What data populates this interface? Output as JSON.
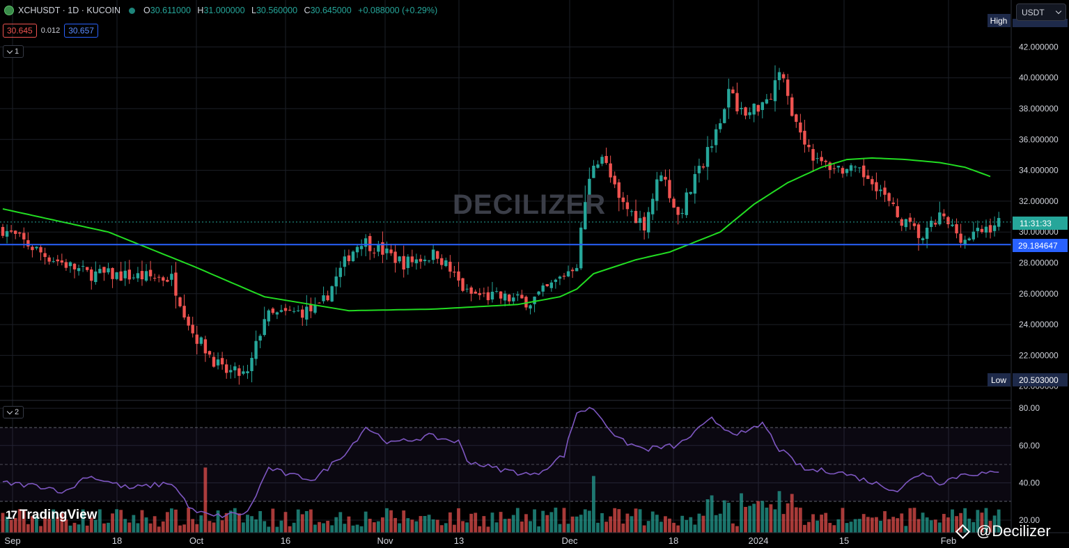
{
  "header": {
    "symbol": "XCHUSDT · 1D · KUCOIN",
    "open_label": "O",
    "open": "30.611000",
    "high_label": "H",
    "high": "31.000000",
    "low_label": "L",
    "low": "30.560000",
    "close_label": "C",
    "close": "30.645000",
    "change": "+0.088000 (+0.29%)",
    "sell_price": "30.645",
    "spread": "0.012",
    "buy_price": "30.657",
    "pane1_label": "1",
    "pane2_label": "2",
    "currency": "USDT"
  },
  "price_axis": {
    "ticks": [
      "42.000000",
      "40.000000",
      "38.000000",
      "36.000000",
      "34.000000",
      "32.000000",
      "30.000000",
      "28.000000",
      "26.000000",
      "24.000000",
      "22.000000",
      "20.000000"
    ],
    "high_tag": "High",
    "low_tag": "Low",
    "low_value": "20.503000",
    "countdown": "11:31:33",
    "line_value": "29.184647"
  },
  "rsi_axis": {
    "ticks": [
      "80.00",
      "60.00",
      "40.00",
      "20.00"
    ]
  },
  "time_axis": {
    "labels": [
      "Sep",
      "18",
      "Oct",
      "16",
      "Nov",
      "13",
      "Dec",
      "18",
      "2024",
      "15",
      "Feb"
    ]
  },
  "watermark": "DECILIZER",
  "branding": {
    "logo": "TradingView",
    "handle": "@Decilizer"
  },
  "colors": {
    "up": "#26a69a",
    "down": "#ef5350",
    "ma": "#22dd22",
    "rsi": "#7e57c2",
    "hline": "#2962ff"
  },
  "chart_data": [
    {
      "type": "candlestick",
      "symbol": "XCHUSDT",
      "interval": "1D",
      "ylim": [
        20,
        43
      ],
      "current_price": 30.645,
      "horizontal_line": 29.184647,
      "period_low": 20.503,
      "x_range": [
        "Sep 2023",
        "Feb 2024"
      ],
      "series": [
        {
          "name": "price",
          "key_points": [
            [
              0,
              30.2
            ],
            [
              10,
              28.5
            ],
            [
              20,
              27.3
            ],
            [
              40,
              27.0
            ],
            [
              45,
              23.5
            ],
            [
              52,
              21.0
            ],
            [
              58,
              20.7
            ],
            [
              62,
              24.5
            ],
            [
              75,
              25.0
            ],
            [
              82,
              28.5
            ],
            [
              85,
              29.5
            ],
            [
              95,
              28.0
            ],
            [
              103,
              28.6
            ],
            [
              110,
              26.0
            ],
            [
              125,
              25.5
            ],
            [
              130,
              26.5
            ],
            [
              136,
              28.0
            ],
            [
              138,
              32.0
            ],
            [
              140,
              34.5
            ],
            [
              142,
              35.0
            ],
            [
              146,
              32.0
            ],
            [
              152,
              30.5
            ],
            [
              156,
              34.0
            ],
            [
              160,
              31.0
            ],
            [
              166,
              34.5
            ],
            [
              170,
              37.5
            ],
            [
              172,
              39.0
            ],
            [
              176,
              37.5
            ],
            [
              182,
              39.0
            ],
            [
              184,
              40.5
            ],
            [
              188,
              37.0
            ],
            [
              193,
              34.5
            ],
            [
              200,
              34.0
            ],
            [
              206,
              33.5
            ],
            [
              212,
              31.0
            ],
            [
              218,
              29.6
            ],
            [
              222,
              31.0
            ],
            [
              228,
              29.5
            ],
            [
              236,
              30.645
            ]
          ]
        },
        {
          "name": "moving-average",
          "key_points": [
            [
              0,
              31.5
            ],
            [
              25,
              30.0
            ],
            [
              45,
              27.8
            ],
            [
              62,
              25.8
            ],
            [
              82,
              24.9
            ],
            [
              102,
              25.0
            ],
            [
              122,
              25.3
            ],
            [
              132,
              25.8
            ],
            [
              136,
              26.3
            ],
            [
              140,
              27.3
            ],
            [
              150,
              28.2
            ],
            [
              158,
              28.7
            ],
            [
              170,
              30.0
            ],
            [
              178,
              31.8
            ],
            [
              186,
              33.2
            ],
            [
              194,
              34.2
            ],
            [
              200,
              34.7
            ],
            [
              206,
              34.8
            ],
            [
              214,
              34.7
            ],
            [
              222,
              34.5
            ],
            [
              228,
              34.2
            ],
            [
              234,
              33.6
            ]
          ]
        },
        {
          "name": "rsi",
          "key_points": [
            [
              0,
              40
            ],
            [
              10,
              38
            ],
            [
              15,
              35
            ],
            [
              20,
              44
            ],
            [
              30,
              37
            ],
            [
              40,
              40
            ],
            [
              45,
              25
            ],
            [
              50,
              22
            ],
            [
              58,
              24
            ],
            [
              63,
              48
            ],
            [
              68,
              44
            ],
            [
              74,
              42
            ],
            [
              82,
              58
            ],
            [
              86,
              70
            ],
            [
              92,
              61
            ],
            [
              101,
              65
            ],
            [
              108,
              62
            ],
            [
              110,
              52
            ],
            [
              116,
              48
            ],
            [
              126,
              44
            ],
            [
              133,
              55
            ],
            [
              136,
              78
            ],
            [
              140,
              80
            ],
            [
              146,
              63
            ],
            [
              152,
              58
            ],
            [
              160,
              60
            ],
            [
              168,
              74
            ],
            [
              172,
              68
            ],
            [
              176,
              66
            ],
            [
              180,
              72
            ],
            [
              184,
              58
            ],
            [
              190,
              47
            ],
            [
              198,
              46
            ],
            [
              205,
              41
            ],
            [
              212,
              36
            ],
            [
              218,
              46
            ],
            [
              222,
              40
            ],
            [
              228,
              45
            ],
            [
              236,
              45
            ]
          ]
        }
      ]
    }
  ]
}
